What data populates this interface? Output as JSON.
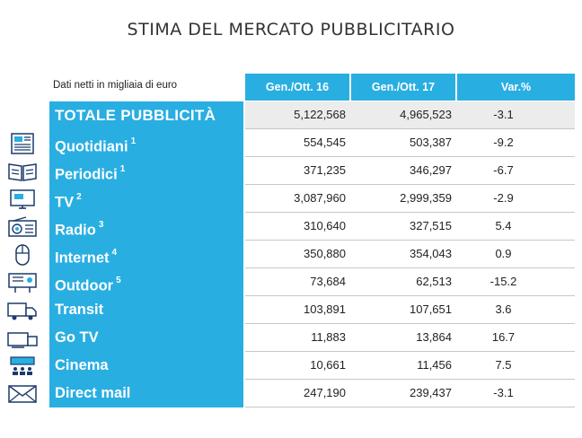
{
  "title": "Stima del mercato pubblicitario",
  "header": {
    "note": "Dati netti in migliaia di euro",
    "col1": "Gen./Ott. 16",
    "col2": "Gen./Ott. 17",
    "col3": "Var.%"
  },
  "rows": [
    {
      "label": "TOTALE PUBBLICITÀ",
      "sup": "",
      "v1": "5,122,568",
      "v2": "4,965,523",
      "v3": "-3.1",
      "icon": ""
    },
    {
      "label": "Quotidiani",
      "sup": "1",
      "v1": "554,545",
      "v2": "503,387",
      "v3": "-9.2",
      "icon": "newspaper-icon"
    },
    {
      "label": "Periodici",
      "sup": "1",
      "v1": "371,235",
      "v2": "346,297",
      "v3": "-6.7",
      "icon": "magazine-icon"
    },
    {
      "label": "TV",
      "sup": "2",
      "v1": "3,087,960",
      "v2": "2,999,359",
      "v3": "-2.9",
      "icon": "tv-icon"
    },
    {
      "label": "Radio",
      "sup": "3",
      "v1": "310,640",
      "v2": "327,515",
      "v3": "5.4",
      "icon": "radio-icon"
    },
    {
      "label": "Internet",
      "sup": "4",
      "v1": "350,880",
      "v2": "354,043",
      "v3": "0.9",
      "icon": "mouse-icon"
    },
    {
      "label": "Outdoor",
      "sup": "5",
      "v1": "73,684",
      "v2": "62,513",
      "v3": "-15.2",
      "icon": "billboard-icon"
    },
    {
      "label": "Transit",
      "sup": "",
      "v1": "103,891",
      "v2": "107,651",
      "v3": "3.6",
      "icon": "truck-icon"
    },
    {
      "label": "Go TV",
      "sup": "",
      "v1": "11,883",
      "v2": "13,864",
      "v3": "16.7",
      "icon": "go-tv-icon"
    },
    {
      "label": "Cinema",
      "sup": "",
      "v1": "10,661",
      "v2": "11,456",
      "v3": "7.5",
      "icon": "cinema-icon"
    },
    {
      "label": "Direct mail",
      "sup": "",
      "v1": "247,190",
      "v2": "239,437",
      "v3": "-3.1",
      "icon": "envelope-icon"
    }
  ]
}
